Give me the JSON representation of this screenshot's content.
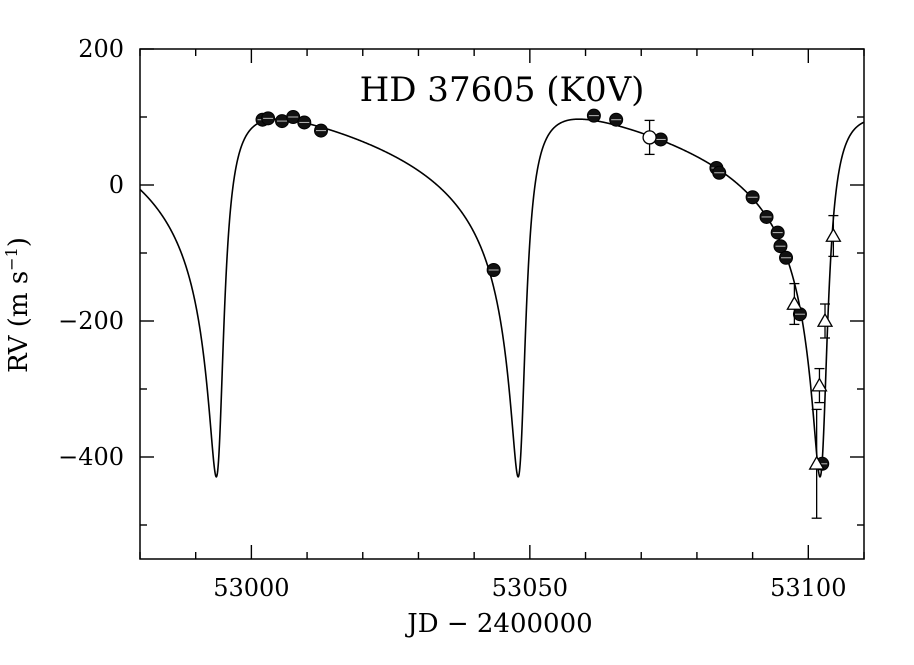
{
  "chart_data": {
    "type": "scatter",
    "title": "HD 37605 (K0V)",
    "xlabel": "JD − 2400000",
    "ylabel_main": "RV (m s",
    "ylabel_sup": "−1",
    "ylabel_close": ")",
    "xlim": [
      52980,
      53110
    ],
    "ylim": [
      -550,
      200
    ],
    "x_ticks_major": [
      53000,
      53050,
      53100
    ],
    "x_tick_labels": [
      "53000",
      "53050",
      "53100"
    ],
    "y_ticks_major": [
      -400,
      -200,
      0,
      200
    ],
    "y_tick_labels": [
      "−400",
      "−200",
      "0",
      "200"
    ],
    "grid": false,
    "legend": "none",
    "series": [
      {
        "marker": "filled-circle",
        "points": [
          {
            "x": 53002.0,
            "y": 96,
            "err": 4
          },
          {
            "x": 53003.0,
            "y": 98,
            "err": 4
          },
          {
            "x": 53005.5,
            "y": 94,
            "err": 4
          },
          {
            "x": 53007.5,
            "y": 100,
            "err": 4
          },
          {
            "x": 53009.5,
            "y": 92,
            "err": 4
          },
          {
            "x": 53012.5,
            "y": 80,
            "err": 4
          },
          {
            "x": 53043.5,
            "y": -125,
            "err": 4
          },
          {
            "x": 53061.5,
            "y": 102,
            "err": 4
          },
          {
            "x": 53065.5,
            "y": 96,
            "err": 4
          },
          {
            "x": 53073.5,
            "y": 67,
            "err": 4
          },
          {
            "x": 53083.5,
            "y": 25,
            "err": 4
          },
          {
            "x": 53084.0,
            "y": 18,
            "err": 4
          },
          {
            "x": 53090.0,
            "y": -18,
            "err": 4
          },
          {
            "x": 53092.5,
            "y": -47,
            "err": 4
          },
          {
            "x": 53094.5,
            "y": -70,
            "err": 4
          },
          {
            "x": 53095.0,
            "y": -90,
            "err": 4
          },
          {
            "x": 53096.0,
            "y": -107,
            "err": 4
          },
          {
            "x": 53098.5,
            "y": -190,
            "err": 6
          },
          {
            "x": 53102.5,
            "y": -410,
            "err": 6
          }
        ]
      },
      {
        "marker": "open-circle",
        "points": [
          {
            "x": 53071.5,
            "y": 70,
            "err": 25
          }
        ]
      },
      {
        "marker": "open-triangle",
        "points": [
          {
            "x": 53097.5,
            "y": -175,
            "err": 30
          },
          {
            "x": 53101.5,
            "y": -410,
            "err": 80
          },
          {
            "x": 53102.0,
            "y": -295,
            "err": 25
          },
          {
            "x": 53103.0,
            "y": -200,
            "err": 25
          },
          {
            "x": 53104.5,
            "y": -75,
            "err": 30
          }
        ]
      }
    ],
    "model_curve": {
      "type": "keplerian",
      "period_days": 54.2,
      "periastron_jd": 52994.2,
      "eccentricity": 0.737,
      "semi_amplitude": 263,
      "omega_deg": 211,
      "systemic_velocity": 0
    }
  }
}
